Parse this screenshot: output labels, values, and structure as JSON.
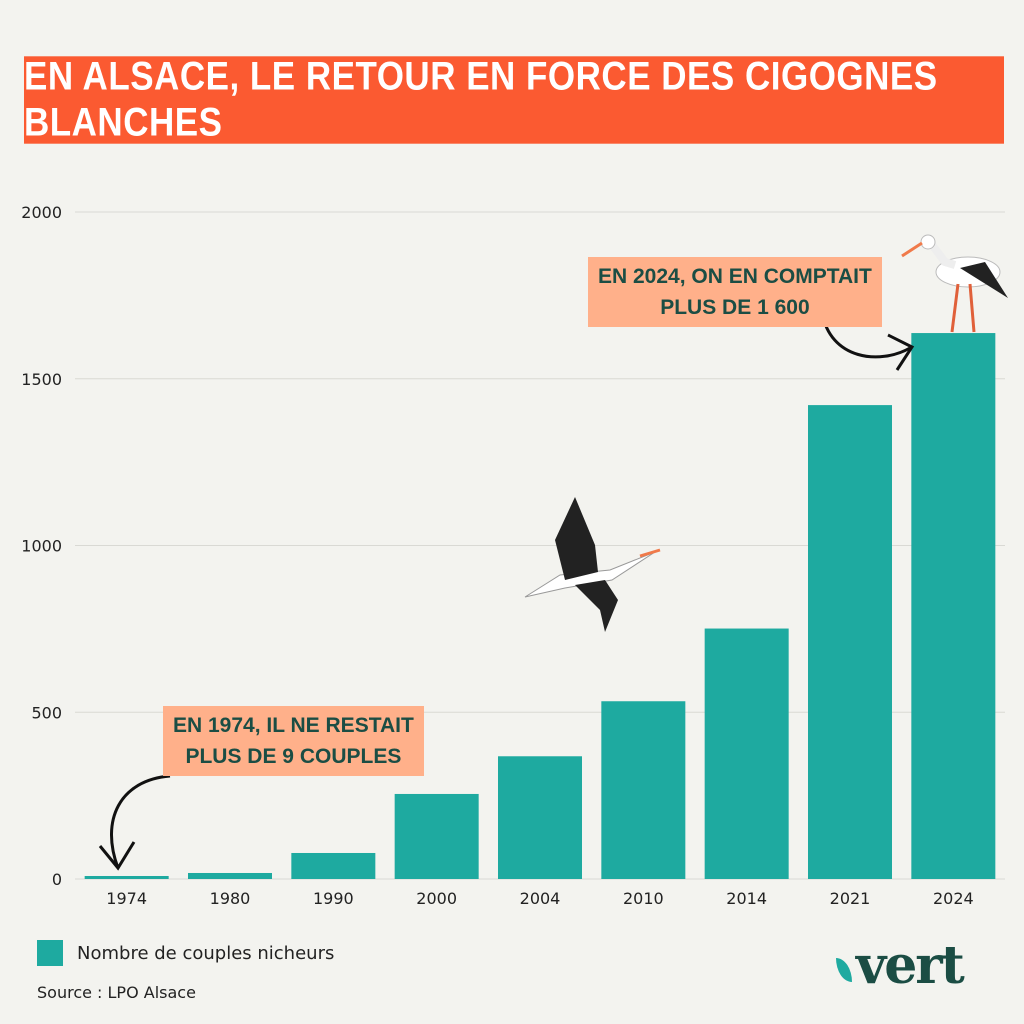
{
  "title": "EN ALSACE, LE RETOUR EN FORCE DES CIGOGNES BLANCHES",
  "chart_data": {
    "type": "bar",
    "title": "EN ALSACE, LE RETOUR EN FORCE DES CIGOGNES BLANCHES",
    "categories": [
      "1974",
      "1980",
      "1990",
      "2000",
      "2004",
      "2010",
      "2014",
      "2021",
      "2024"
    ],
    "values": [
      9,
      18,
      78,
      255,
      368,
      533,
      751,
      1421,
      1637
    ],
    "ylim": [
      0,
      2000
    ],
    "yticks": [
      0,
      500,
      1000,
      1500,
      2000
    ],
    "grid": true,
    "legend": "bottom-left",
    "series_name": "Nombre de couples nicheurs",
    "color": "#1eaaa0",
    "annotations": [
      {
        "text_line1": "EN 1974, IL NE RESTAIT",
        "text_line2": "PLUS DE 9 COUPLES",
        "target": "1974"
      },
      {
        "text_line1": "EN 2024, ON EN COMPTAIT",
        "text_line2": "PLUS DE 1 600",
        "target": "2024"
      }
    ]
  },
  "source": "Source : LPO Alsace",
  "logo": "vert"
}
